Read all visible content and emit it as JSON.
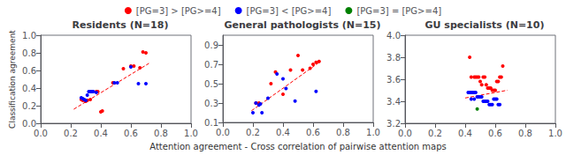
{
  "chart_data": [
    {
      "type": "scatter",
      "title": "Residents (N=18)",
      "ylabel": "Classification agreement",
      "xlim": [
        0.0,
        1.0
      ],
      "ylim": [
        0.0,
        1.0
      ],
      "xticks": [
        {
          "value": 0.0,
          "label": "0.0"
        },
        0.2,
        0.4,
        0.6,
        0.8,
        {
          "value": 1.0,
          "label": "1.0"
        }
      ],
      "yticks": [
        {
          "value": 0.0,
          "label": "0.0"
        },
        0.2,
        0.4,
        0.6,
        0.8,
        {
          "value": 1.0,
          "label": "1.0"
        }
      ],
      "grid": false,
      "legend": "top",
      "series": [
        {
          "type": "scatter",
          "name": "[PG=3] > [PG>=4]",
          "color": "red",
          "x": [
            0.27,
            0.28,
            0.3,
            0.31,
            0.33,
            0.37,
            0.38,
            0.4,
            0.41,
            0.48,
            0.55,
            0.6,
            0.62,
            0.66,
            0.68,
            0.7
          ],
          "values": [
            0.27,
            0.26,
            0.25,
            0.26,
            0.27,
            0.36,
            0.36,
            0.13,
            0.14,
            0.46,
            0.62,
            0.65,
            0.65,
            0.63,
            0.81,
            0.8
          ]
        },
        {
          "type": "scatter",
          "name": "[PG=3] < [PG>=4]",
          "color": "blue",
          "x": [
            0.27,
            0.28,
            0.29,
            0.3,
            0.31,
            0.32,
            0.33,
            0.34,
            0.35,
            0.37,
            0.49,
            0.51,
            0.6,
            0.65,
            0.7
          ],
          "values": [
            0.29,
            0.28,
            0.27,
            0.26,
            0.32,
            0.36,
            0.36,
            0.36,
            0.36,
            0.35,
            0.46,
            0.46,
            0.64,
            0.45,
            0.45
          ]
        },
        {
          "type": "scatter",
          "name": "[PG=3] = [PG>=4]",
          "color": "green",
          "x": [],
          "values": []
        },
        {
          "type": "line",
          "color": "red",
          "line_style": "dashed",
          "x": [
            0.22,
            0.72
          ],
          "values": [
            0.16,
            0.68
          ]
        }
      ]
    },
    {
      "type": "scatter",
      "title": "General pathologists (N=15)",
      "xlabel": "Attention agreement - Cross correlation of pairwise attention maps",
      "xlim": [
        0.0,
        1.0
      ],
      "ylim": [
        0.1,
        1.0
      ],
      "xticks": [
        {
          "value": 0.0,
          "label": "0.0"
        },
        0.2,
        0.4,
        0.6,
        0.8,
        {
          "value": 1.0,
          "label": "1.0"
        }
      ],
      "yticks": [
        0.1,
        0.3,
        0.5,
        0.7,
        0.9
      ],
      "grid": false,
      "legend": "top",
      "series": [
        {
          "type": "scatter",
          "name": "[PG=3] > [PG>=4]",
          "color": "red",
          "x": [
            0.22,
            0.24,
            0.32,
            0.35,
            0.4,
            0.45,
            0.5,
            0.53,
            0.58,
            0.6,
            0.62,
            0.64
          ],
          "values": [
            0.3,
            0.3,
            0.5,
            0.62,
            0.39,
            0.64,
            0.79,
            0.64,
            0.66,
            0.7,
            0.72,
            0.73
          ]
        },
        {
          "type": "scatter",
          "name": "[PG=3] < [PG>=4]",
          "color": "blue",
          "x": [
            0.2,
            0.22,
            0.24,
            0.25,
            0.26,
            0.3,
            0.36,
            0.4,
            0.42,
            0.48,
            0.62
          ],
          "values": [
            0.2,
            0.3,
            0.28,
            0.29,
            0.2,
            0.35,
            0.6,
            0.55,
            0.45,
            0.32,
            0.42
          ]
        },
        {
          "type": "scatter",
          "name": "[PG=3] = [PG>=4]",
          "color": "green",
          "x": [],
          "values": []
        },
        {
          "type": "line",
          "color": "red",
          "line_style": "dashed",
          "x": [
            0.19,
            0.65
          ],
          "values": [
            0.22,
            0.73
          ]
        }
      ]
    },
    {
      "type": "scatter",
      "title": "GU specialists (N=10)",
      "xlim": [
        0.0,
        1.0
      ],
      "ylim": [
        3.2,
        4.0
      ],
      "xticks": [
        {
          "value": 0.0,
          "label": "0.0"
        },
        0.2,
        0.4,
        0.6,
        0.8,
        {
          "value": 1.0,
          "label": "1.0"
        }
      ],
      "yticks": [
        3.2,
        3.4,
        3.6,
        3.8,
        {
          "value": 4.0,
          "label": "4.0"
        }
      ],
      "grid": false,
      "legend": "top",
      "series": [
        {
          "type": "scatter",
          "name": "[PG=3] > [PG>=4]",
          "color": "red",
          "x": [
            0.43,
            0.44,
            0.46,
            0.47,
            0.48,
            0.49,
            0.5,
            0.51,
            0.52,
            0.53,
            0.54,
            0.55,
            0.56,
            0.57,
            0.58,
            0.59,
            0.6,
            0.61,
            0.62,
            0.63,
            0.64,
            0.65
          ],
          "values": [
            3.8,
            3.62,
            3.62,
            3.62,
            3.62,
            3.62,
            3.58,
            3.55,
            3.62,
            3.62,
            3.55,
            3.52,
            3.52,
            3.52,
            3.5,
            3.5,
            3.5,
            3.58,
            3.58,
            3.62,
            3.62,
            3.72
          ]
        },
        {
          "type": "scatter",
          "name": "[PG=3] < [PG>=4]",
          "color": "blue",
          "x": [
            0.42,
            0.43,
            0.44,
            0.45,
            0.46,
            0.47,
            0.48,
            0.49,
            0.5,
            0.51,
            0.52,
            0.53,
            0.54,
            0.55,
            0.56,
            0.57,
            0.58,
            0.59,
            0.6,
            0.61,
            0.62,
            0.63,
            0.44,
            0.46
          ],
          "values": [
            3.48,
            3.48,
            3.48,
            3.48,
            3.48,
            3.48,
            3.44,
            3.44,
            3.44,
            3.44,
            3.4,
            3.4,
            3.4,
            3.4,
            3.37,
            3.37,
            3.37,
            3.42,
            3.42,
            3.42,
            3.37,
            3.37,
            3.42,
            3.42
          ]
        },
        {
          "type": "scatter",
          "name": "[PG=3] = [PG>=4]",
          "color": "green",
          "x": [
            0.48
          ],
          "values": [
            3.33
          ]
        },
        {
          "type": "line",
          "color": "red",
          "line_style": "dashed",
          "x": [
            0.4,
            0.68
          ],
          "values": [
            3.43,
            3.5
          ]
        }
      ]
    }
  ]
}
